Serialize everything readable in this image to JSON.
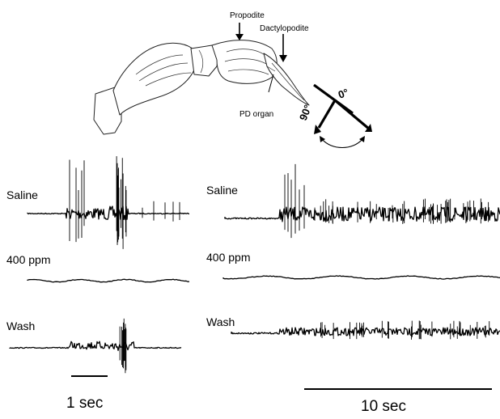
{
  "anatomy": {
    "propodite_label": "Propodite",
    "dactylopodite_label": "Dactylopodite",
    "pd_organ_label": "PD organ",
    "angle_zero_label": "0°",
    "angle_ninety_label": "90°"
  },
  "recordings": {
    "left_panel": {
      "saline_label": "Saline",
      "drug_label": "400 ppm",
      "wash_label": "Wash",
      "scale_label": "1 sec"
    },
    "right_panel": {
      "saline_label": "Saline",
      "drug_label": "400 ppm",
      "wash_label": "Wash",
      "scale_label": "10 sec"
    }
  }
}
